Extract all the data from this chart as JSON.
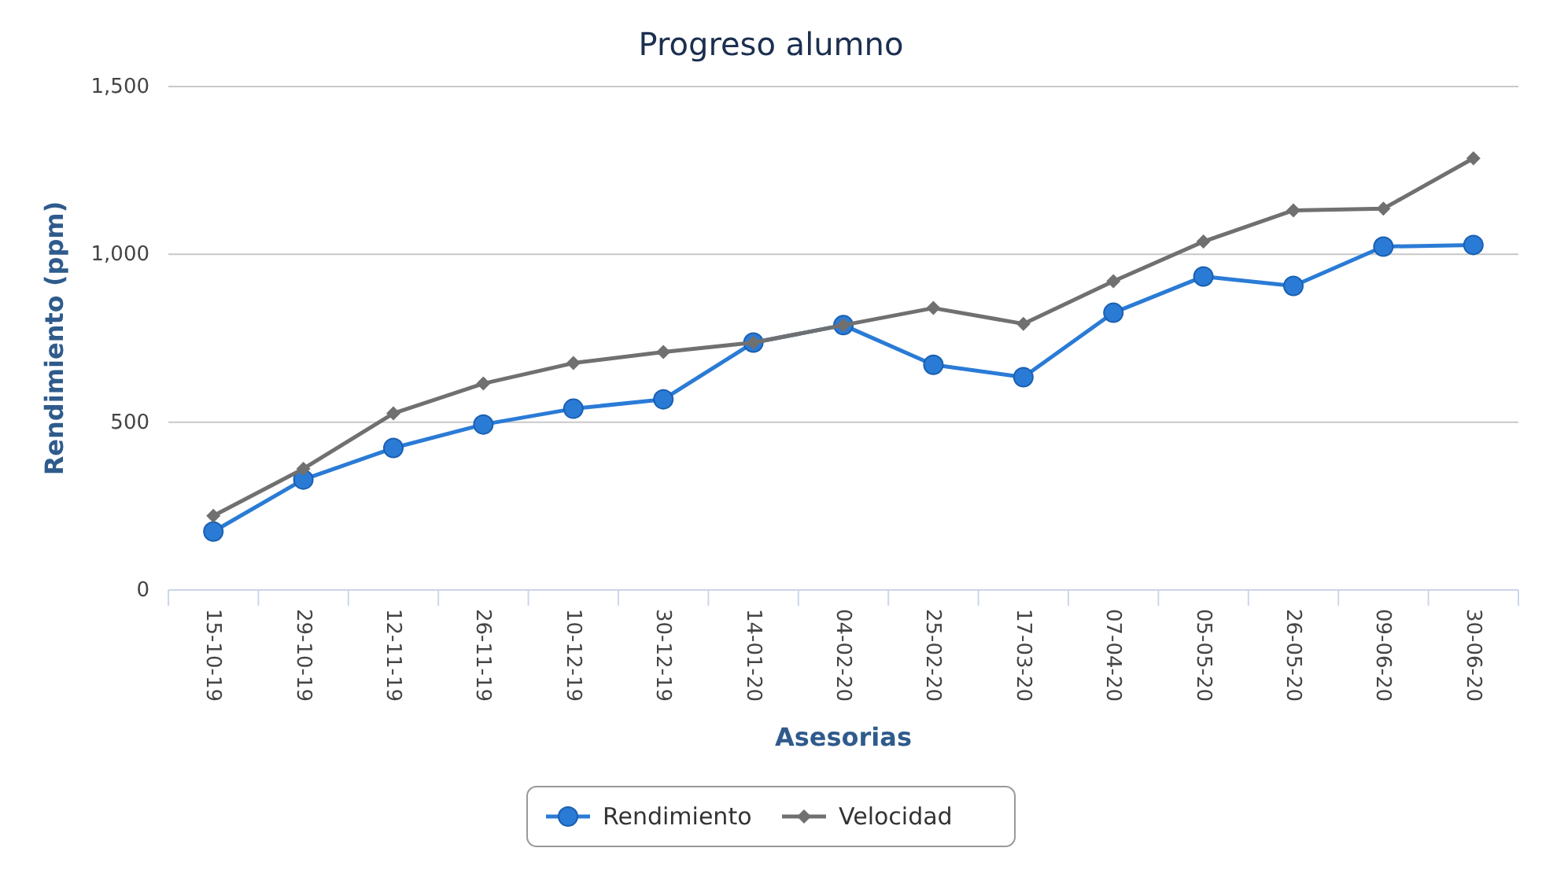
{
  "chart_data": {
    "type": "line",
    "title": "Progreso alumno",
    "xlabel": "Asesorias",
    "ylabel": "Rendimiento (ppm)",
    "categories": [
      "15-10-19",
      "29-10-19",
      "12-11-19",
      "26-11-19",
      "10-12-19",
      "30-12-19",
      "14-01-20",
      "04-02-20",
      "25-02-20",
      "17-03-20",
      "07-04-20",
      "05-05-20",
      "26-05-20",
      "09-06-20",
      "30-06-20"
    ],
    "series": [
      {
        "name": "Rendimiento",
        "color": "#2a7bd6",
        "marker": "circle",
        "values": [
          174,
          329,
          423,
          493,
          540,
          568,
          737,
          789,
          671,
          634,
          826,
          934,
          906,
          1023,
          1028
        ]
      },
      {
        "name": "Velocidad",
        "color": "#707070",
        "marker": "diamond",
        "values": [
          221,
          361,
          526,
          615,
          676,
          709,
          737,
          789,
          840,
          793,
          920,
          1038,
          1131,
          1136,
          1286
        ]
      }
    ],
    "ylim": [
      0,
      1500
    ],
    "yticks": [
      0,
      {
        "value": 500,
        "label": "500"
      },
      {
        "value": 1000,
        "label": "1,000"
      },
      {
        "value": 1500,
        "label": "1,500"
      }
    ],
    "grid": "y",
    "legend": "bottom",
    "line_style": "solid"
  }
}
